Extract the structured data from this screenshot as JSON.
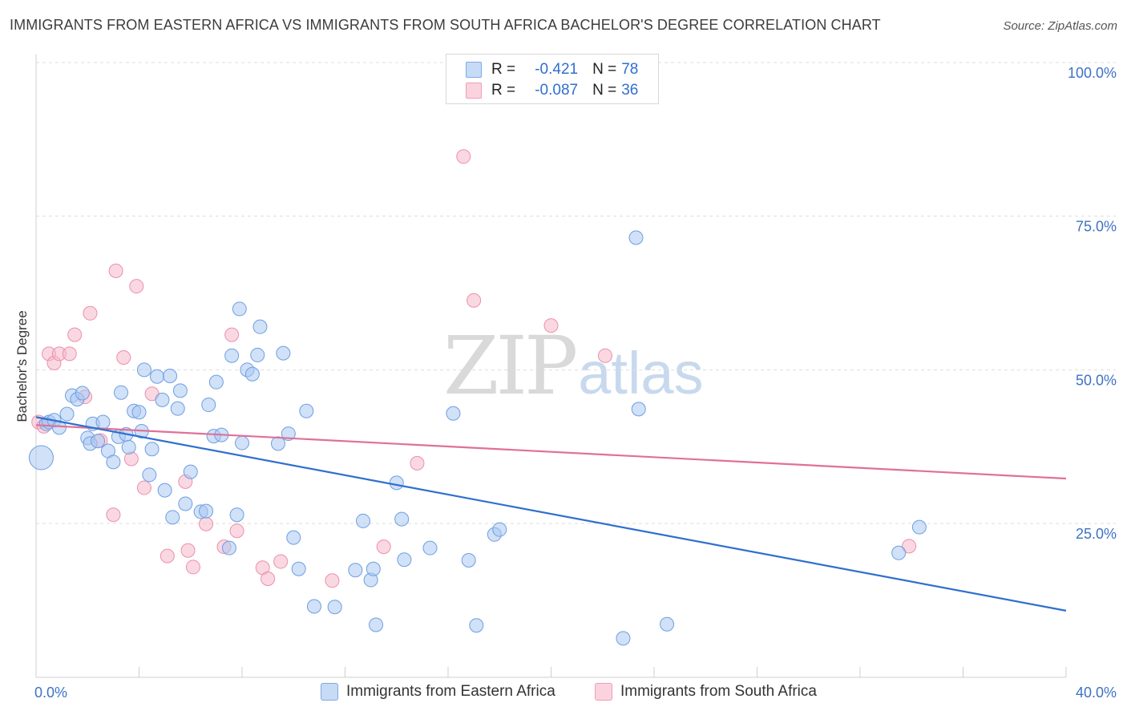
{
  "title": "IMMIGRANTS FROM EASTERN AFRICA VS IMMIGRANTS FROM SOUTH AFRICA BACHELOR'S DEGREE CORRELATION CHART",
  "source": "Source: ZipAtlas.com",
  "watermark": {
    "zip": "ZIP",
    "atlas": "atlas"
  },
  "stats": [
    {
      "r_label": "R =",
      "r_value": "-0.421",
      "n_label": "N =",
      "n_value": "78",
      "color": "#a9c8f2"
    },
    {
      "r_label": "R =",
      "r_value": "-0.087",
      "n_label": "N =",
      "n_value": "36",
      "color": "#f6b8ca"
    }
  ],
  "legend": [
    {
      "label": "Immigrants from Eastern Africa",
      "color": "#a9c8f2"
    },
    {
      "label": "Immigrants from South Africa",
      "color": "#f6b8ca"
    }
  ],
  "colors": {
    "blue_fill": "#a9c8f2",
    "blue_stroke": "#6e9fe0",
    "blue_line": "#2f6fce",
    "pink_fill": "#f6b8ca",
    "pink_stroke": "#ec8fad",
    "pink_line": "#e07098",
    "axis_text": "#3d72c4",
    "grid": "#dddddd"
  },
  "chart_data": {
    "type": "scatter",
    "title": "IMMIGRANTS FROM EASTERN AFRICA VS IMMIGRANTS FROM SOUTH AFRICA BACHELOR'S DEGREE CORRELATION CHART",
    "xlabel": "",
    "ylabel": "Bachelor's Degree",
    "xlim": [
      0,
      40
    ],
    "ylim": [
      0,
      105
    ],
    "x_tick_labels": [
      {
        "value": 0,
        "label": "0.0%"
      },
      {
        "value": 40,
        "label": "40.0%"
      }
    ],
    "y_tick_labels": [
      {
        "value": 25,
        "label": "25.0%"
      },
      {
        "value": 50,
        "label": "50.0%"
      },
      {
        "value": 75,
        "label": "75.0%"
      },
      {
        "value": 100,
        "label": "100.0%"
      }
    ],
    "grid": "horizontal dashed",
    "legend_position": "bottom",
    "series": [
      {
        "name": "Immigrants from Eastern Africa",
        "color": "#a9c8f2",
        "trend": {
          "x": [
            0,
            40
          ],
          "y": [
            42.3,
            10.8
          ]
        },
        "points": [
          [
            0.2,
            35.7
          ],
          [
            0.4,
            41.2
          ],
          [
            0.5,
            41.5
          ],
          [
            0.7,
            41.8
          ],
          [
            0.9,
            40.6
          ],
          [
            1.2,
            42.8
          ],
          [
            1.4,
            45.8
          ],
          [
            1.6,
            45.2
          ],
          [
            1.8,
            46.2
          ],
          [
            2.0,
            38.9
          ],
          [
            2.1,
            38.0
          ],
          [
            2.2,
            41.2
          ],
          [
            2.4,
            38.4
          ],
          [
            2.6,
            41.5
          ],
          [
            2.8,
            36.8
          ],
          [
            3.0,
            35.0
          ],
          [
            3.2,
            39.1
          ],
          [
            3.3,
            46.3
          ],
          [
            3.5,
            39.5
          ],
          [
            3.6,
            37.4
          ],
          [
            3.8,
            43.3
          ],
          [
            4.0,
            43.1
          ],
          [
            4.1,
            40.0
          ],
          [
            4.2,
            50.0
          ],
          [
            4.4,
            32.9
          ],
          [
            4.5,
            37.1
          ],
          [
            4.7,
            48.9
          ],
          [
            4.9,
            45.1
          ],
          [
            5.0,
            30.4
          ],
          [
            5.2,
            49.0
          ],
          [
            5.3,
            26.0
          ],
          [
            5.5,
            43.7
          ],
          [
            5.6,
            46.6
          ],
          [
            5.8,
            28.2
          ],
          [
            6.0,
            33.4
          ],
          [
            6.4,
            26.9
          ],
          [
            6.6,
            27.0
          ],
          [
            6.7,
            44.3
          ],
          [
            6.9,
            39.2
          ],
          [
            7.0,
            48.0
          ],
          [
            7.2,
            39.4
          ],
          [
            7.5,
            21.0
          ],
          [
            7.6,
            52.3
          ],
          [
            7.8,
            26.4
          ],
          [
            7.9,
            59.9
          ],
          [
            8.0,
            38.1
          ],
          [
            8.2,
            50.0
          ],
          [
            8.4,
            49.3
          ],
          [
            8.6,
            52.4
          ],
          [
            8.7,
            57.0
          ],
          [
            9.4,
            38.0
          ],
          [
            9.6,
            52.7
          ],
          [
            9.8,
            39.6
          ],
          [
            10.0,
            22.7
          ],
          [
            10.2,
            17.6
          ],
          [
            10.5,
            43.3
          ],
          [
            10.8,
            11.5
          ],
          [
            11.6,
            11.4
          ],
          [
            12.7,
            25.4
          ],
          [
            13.0,
            15.8
          ],
          [
            13.1,
            17.6
          ],
          [
            13.2,
            8.5
          ],
          [
            14.0,
            31.6
          ],
          [
            14.2,
            25.7
          ],
          [
            14.3,
            19.1
          ],
          [
            15.3,
            21.0
          ],
          [
            16.2,
            42.9
          ],
          [
            17.1,
            8.4
          ],
          [
            17.8,
            23.2
          ],
          [
            18.0,
            24.0
          ],
          [
            22.8,
            6.3
          ],
          [
            23.3,
            71.5
          ],
          [
            23.4,
            43.6
          ],
          [
            24.5,
            8.6
          ],
          [
            33.5,
            20.2
          ],
          [
            34.3,
            24.4
          ],
          [
            12.4,
            17.4
          ],
          [
            16.8,
            19.0
          ]
        ]
      },
      {
        "name": "Immigrants from South Africa",
        "color": "#f6b8ca",
        "trend": {
          "x": [
            0,
            40
          ],
          "y": [
            41.0,
            32.3
          ]
        },
        "points": [
          [
            0.1,
            41.5
          ],
          [
            0.3,
            40.8
          ],
          [
            0.5,
            52.6
          ],
          [
            0.7,
            51.1
          ],
          [
            0.9,
            52.6
          ],
          [
            1.3,
            52.6
          ],
          [
            1.5,
            55.7
          ],
          [
            1.9,
            45.6
          ],
          [
            2.1,
            59.2
          ],
          [
            2.5,
            38.5
          ],
          [
            3.0,
            26.4
          ],
          [
            3.1,
            66.1
          ],
          [
            3.4,
            52.0
          ],
          [
            3.7,
            35.5
          ],
          [
            3.9,
            63.6
          ],
          [
            4.2,
            30.8
          ],
          [
            4.5,
            46.1
          ],
          [
            5.1,
            19.7
          ],
          [
            5.8,
            31.8
          ],
          [
            5.9,
            20.6
          ],
          [
            6.1,
            17.9
          ],
          [
            6.6,
            24.9
          ],
          [
            7.3,
            21.2
          ],
          [
            7.6,
            55.7
          ],
          [
            7.8,
            23.8
          ],
          [
            8.8,
            17.8
          ],
          [
            9.0,
            16.0
          ],
          [
            9.5,
            18.8
          ],
          [
            11.5,
            15.7
          ],
          [
            13.5,
            21.2
          ],
          [
            14.8,
            34.8
          ],
          [
            16.6,
            84.7
          ],
          [
            17.0,
            61.3
          ],
          [
            20.0,
            57.2
          ],
          [
            22.1,
            52.3
          ],
          [
            33.9,
            21.3
          ]
        ]
      }
    ]
  }
}
